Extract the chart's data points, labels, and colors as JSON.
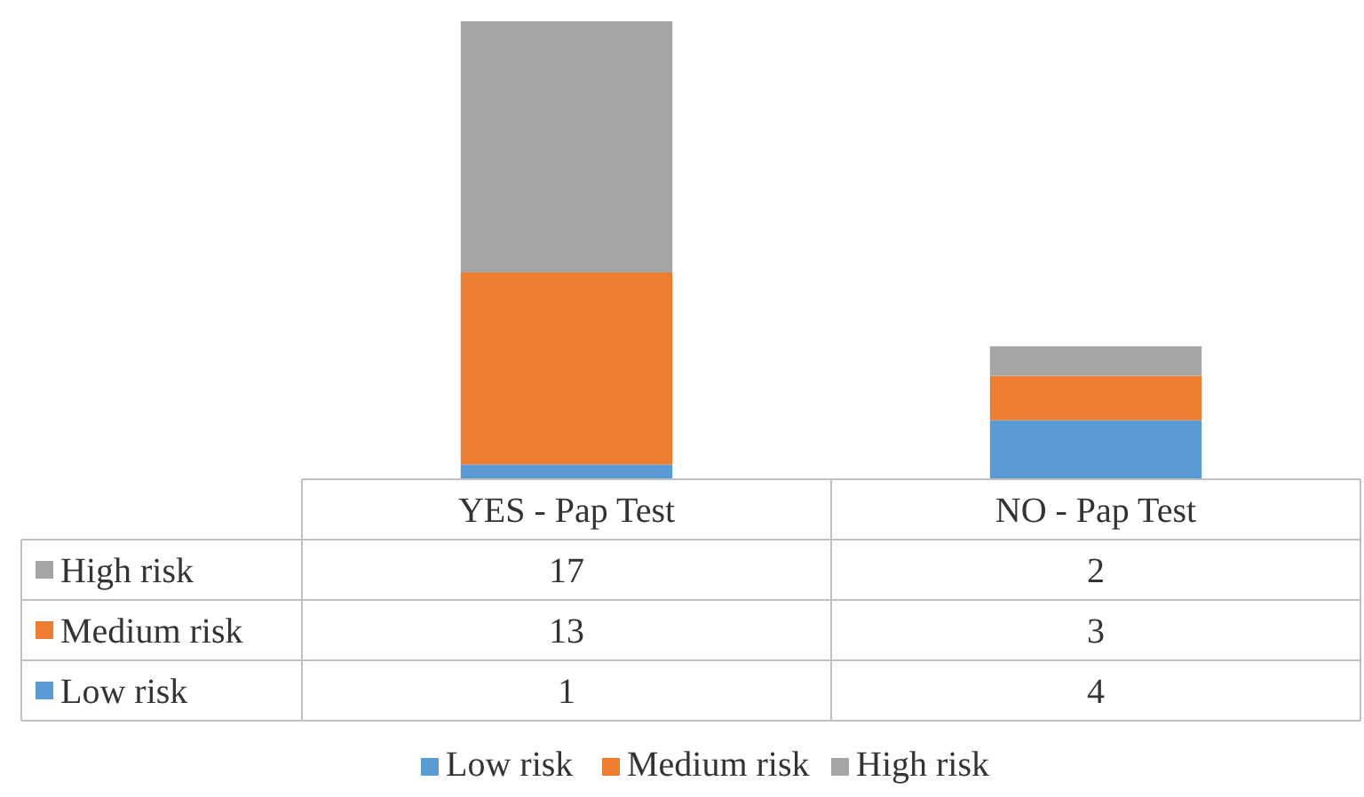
{
  "chart_data": {
    "type": "bar",
    "stacked": true,
    "categories": [
      "YES - Pap Test",
      "NO - Pap Test"
    ],
    "series": [
      {
        "name": "Low risk",
        "color": "#5b9bd5",
        "values": [
          1,
          4
        ]
      },
      {
        "name": "Medium risk",
        "color": "#ed7d31",
        "values": [
          13,
          3
        ]
      },
      {
        "name": "High risk",
        "color": "#a5a5a5",
        "values": [
          17,
          2
        ]
      }
    ],
    "data_labels": true,
    "legend": "bottom"
  }
}
